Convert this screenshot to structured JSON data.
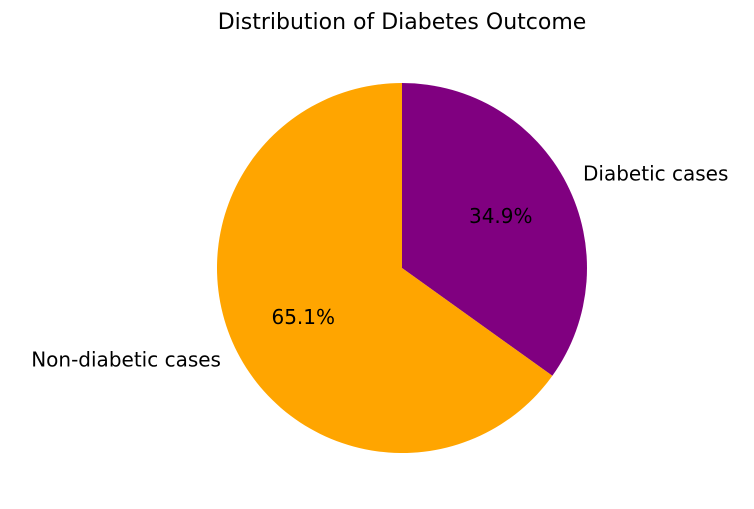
{
  "chart_data": {
    "type": "pie",
    "title": "Distribution of Diabetes Outcome",
    "start_angle_deg": 90,
    "direction": "clockwise",
    "slices": [
      {
        "label": "Diabetic cases",
        "value": 34.9,
        "pct_label": "34.9%",
        "color": "#800080"
      },
      {
        "label": "Non-diabetic cases",
        "value": 65.1,
        "pct_label": "65.1%",
        "color": "#FFA500"
      }
    ]
  }
}
